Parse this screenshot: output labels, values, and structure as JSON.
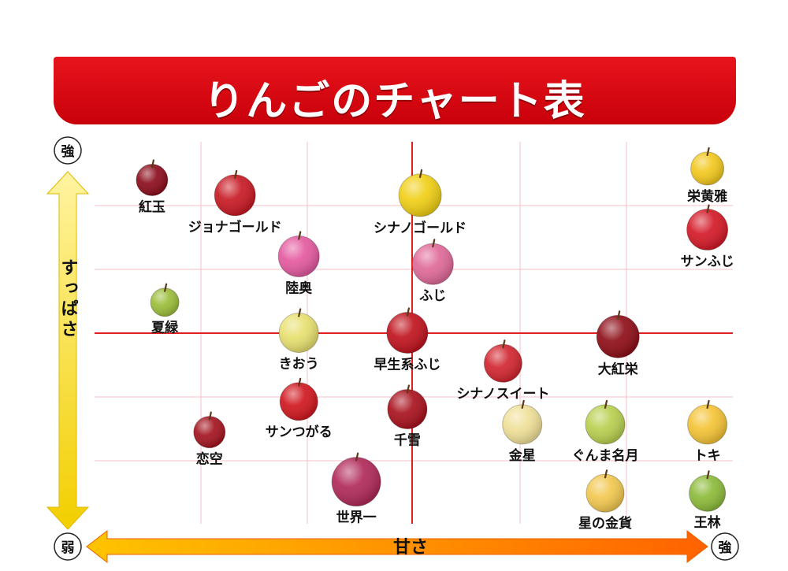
{
  "title": "りんごのチャート表",
  "colors": {
    "banner": "#d80c14",
    "grid_major": "#e02020",
    "grid_minor": "#f6c0c4",
    "y_arrow_top": "#ffe066",
    "y_arrow_bottom": "#f5d000",
    "x_arrow_left": "#ffb000",
    "x_arrow_right": "#ff6a00"
  },
  "axes": {
    "x_title": "甘さ",
    "y_title": "すっぱさ",
    "y_top_label": "強",
    "origin_label": "弱",
    "x_right_label": "強"
  },
  "chart_data": {
    "type": "scatter",
    "xlabel": "甘さ",
    "ylabel": "すっぱさ",
    "xlim": [
      0,
      10
    ],
    "ylim": [
      0,
      10
    ],
    "grid": true,
    "points": [
      {
        "name": "紅玉",
        "x": 0.9,
        "y": 9.0,
        "color": "#8b0d1c"
      },
      {
        "name": "ジョナゴールド",
        "x": 2.2,
        "y": 8.6,
        "color": "#c81a24"
      },
      {
        "name": "陸奥",
        "x": 3.2,
        "y": 7.0,
        "color": "#e45aa0"
      },
      {
        "name": "夏緑",
        "x": 1.1,
        "y": 5.8,
        "color": "#9bbd3a"
      },
      {
        "name": "シナノゴールド",
        "x": 5.1,
        "y": 8.6,
        "color": "#f0cf16"
      },
      {
        "name": "ふじ",
        "x": 5.3,
        "y": 6.8,
        "color": "#e06a9a"
      },
      {
        "name": "栄黄雅",
        "x": 9.6,
        "y": 9.3,
        "color": "#f2c81e"
      },
      {
        "name": "サンふじ",
        "x": 9.6,
        "y": 7.7,
        "color": "#d41a28"
      },
      {
        "name": "きおう",
        "x": 3.2,
        "y": 5.0,
        "color": "#e8e070"
      },
      {
        "name": "早生系ふじ",
        "x": 4.9,
        "y": 5.0,
        "color": "#c0141e"
      },
      {
        "name": "大紅栄",
        "x": 8.2,
        "y": 4.9,
        "color": "#8e0e18"
      },
      {
        "name": "シナノスイート",
        "x": 6.4,
        "y": 4.2,
        "color": "#d22630"
      },
      {
        "name": "サンつがる",
        "x": 3.2,
        "y": 3.2,
        "color": "#d01820"
      },
      {
        "name": "千雪",
        "x": 4.9,
        "y": 3.0,
        "color": "#a8121e"
      },
      {
        "name": "恋空",
        "x": 1.8,
        "y": 2.4,
        "color": "#a31420"
      },
      {
        "name": "金星",
        "x": 6.7,
        "y": 2.6,
        "color": "#f0e098"
      },
      {
        "name": "ぐんま名月",
        "x": 8.0,
        "y": 2.6,
        "color": "#b8d050"
      },
      {
        "name": "トキ",
        "x": 9.6,
        "y": 2.6,
        "color": "#f4c436"
      },
      {
        "name": "世界一",
        "x": 4.1,
        "y": 1.1,
        "color": "#b02a5a"
      },
      {
        "name": "星の金貨",
        "x": 8.0,
        "y": 0.8,
        "color": "#f2c850"
      },
      {
        "name": "王林",
        "x": 9.6,
        "y": 0.8,
        "color": "#8cbb3a"
      }
    ]
  }
}
